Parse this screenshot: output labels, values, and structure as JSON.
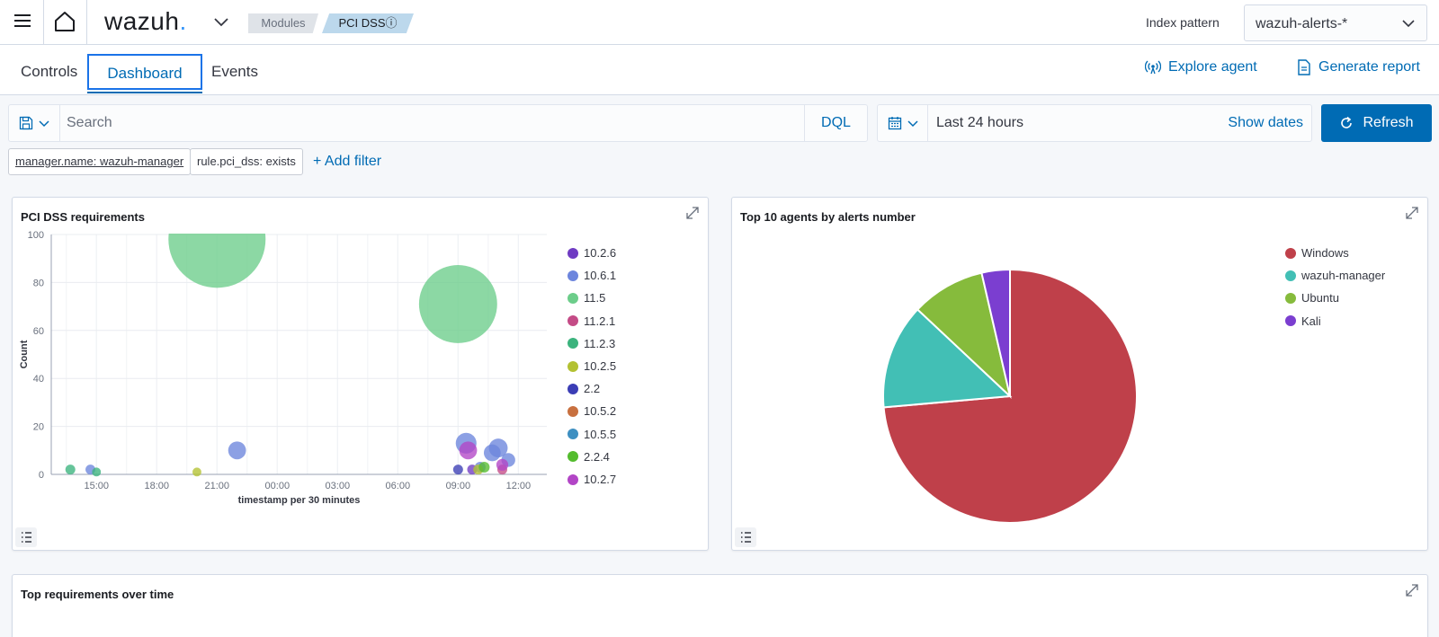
{
  "header": {
    "logo_text": "wazuh",
    "logo_dot": ".",
    "breadcrumbs": [
      "Modules",
      "PCI DSSⓘ"
    ],
    "index_pattern_label": "Index pattern",
    "index_pattern_value": "wazuh-alerts-*"
  },
  "tabs": [
    "Controls",
    "Dashboard",
    "Events"
  ],
  "active_tab": "Dashboard",
  "actions": {
    "explore_agent": "Explore agent",
    "generate_report": "Generate report"
  },
  "query": {
    "placeholder": "Search",
    "language": "DQL",
    "date_range": "Last 24 hours",
    "show_dates": "Show dates",
    "refresh": "Refresh"
  },
  "filters": {
    "pills": [
      "manager.name: wazuh-manager",
      "rule.pci_dss: exists"
    ],
    "add_filter": "+ Add filter"
  },
  "colors": {
    "primary": "#006bb4",
    "windows": "#bf404a",
    "wazuh_manager": "#42bfb5",
    "ubuntu": "#86bb3c",
    "kali": "#7b3ed0"
  },
  "panels": {
    "requirements_title": "PCI DSS requirements",
    "agents_title": "Top 10 agents by alerts number",
    "over_time_title": "Top requirements over time"
  },
  "chart_data": [
    {
      "type": "scatter",
      "title": "PCI DSS requirements",
      "xlabel": "timestamp per 30 minutes",
      "ylabel": "Count",
      "ylim": [
        0,
        100
      ],
      "x_ticks": [
        "15:00",
        "18:00",
        "21:00",
        "00:00",
        "03:00",
        "06:00",
        "09:00",
        "12:00"
      ],
      "y_ticks": [
        0,
        20,
        40,
        60,
        80,
        100
      ],
      "grid": true,
      "legend_position": "right",
      "series": [
        {
          "name": "10.2.6",
          "color": "#6f3bc3",
          "points": [
            [
              9.7,
              2
            ]
          ]
        },
        {
          "name": "10.6.1",
          "color": "#6c85dd",
          "points": [
            [
              14.7,
              2
            ],
            [
              22.0,
              10
            ],
            [
              9.4,
              13
            ],
            [
              11.0,
              11
            ],
            [
              10.7,
              9
            ],
            [
              11.5,
              6
            ],
            [
              10.1,
              3
            ]
          ]
        },
        {
          "name": "11.5",
          "color": "#6ccd8a",
          "points": [
            [
              21.0,
              98
            ],
            [
              9.0,
              71
            ]
          ]
        },
        {
          "name": "11.2.1",
          "color": "#c44b86",
          "points": [
            [
              11.2,
              2
            ]
          ]
        },
        {
          "name": "11.2.3",
          "color": "#3bb37d",
          "points": [
            [
              13.7,
              2
            ],
            [
              15.0,
              1
            ]
          ]
        },
        {
          "name": "10.2.5",
          "color": "#b3c132",
          "points": [
            [
              20.0,
              1
            ],
            [
              10.0,
              2
            ]
          ]
        },
        {
          "name": "2.2",
          "color": "#3b3db5",
          "points": [
            [
              9.0,
              2
            ]
          ]
        },
        {
          "name": "10.5.2",
          "color": "#c8703f",
          "points": []
        },
        {
          "name": "10.5.5",
          "color": "#3d8fc1",
          "points": []
        },
        {
          "name": "2.2.4",
          "color": "#54bc2e",
          "points": [
            [
              10.3,
              3
            ]
          ]
        },
        {
          "name": "10.2.7",
          "color": "#b245c6",
          "points": [
            [
              9.5,
              10
            ],
            [
              11.2,
              4
            ]
          ]
        }
      ]
    },
    {
      "type": "pie",
      "title": "Top 10 agents by alerts number",
      "legend_position": "right",
      "slices": [
        {
          "label": "Windows",
          "value": 73.6,
          "color": "#bf404a"
        },
        {
          "label": "wazuh-manager",
          "value": 13.4,
          "color": "#42bfb5"
        },
        {
          "label": "Ubuntu",
          "value": 9.4,
          "color": "#86bb3c"
        },
        {
          "label": "Kali",
          "value": 3.6,
          "color": "#7b3ed0"
        }
      ]
    }
  ]
}
